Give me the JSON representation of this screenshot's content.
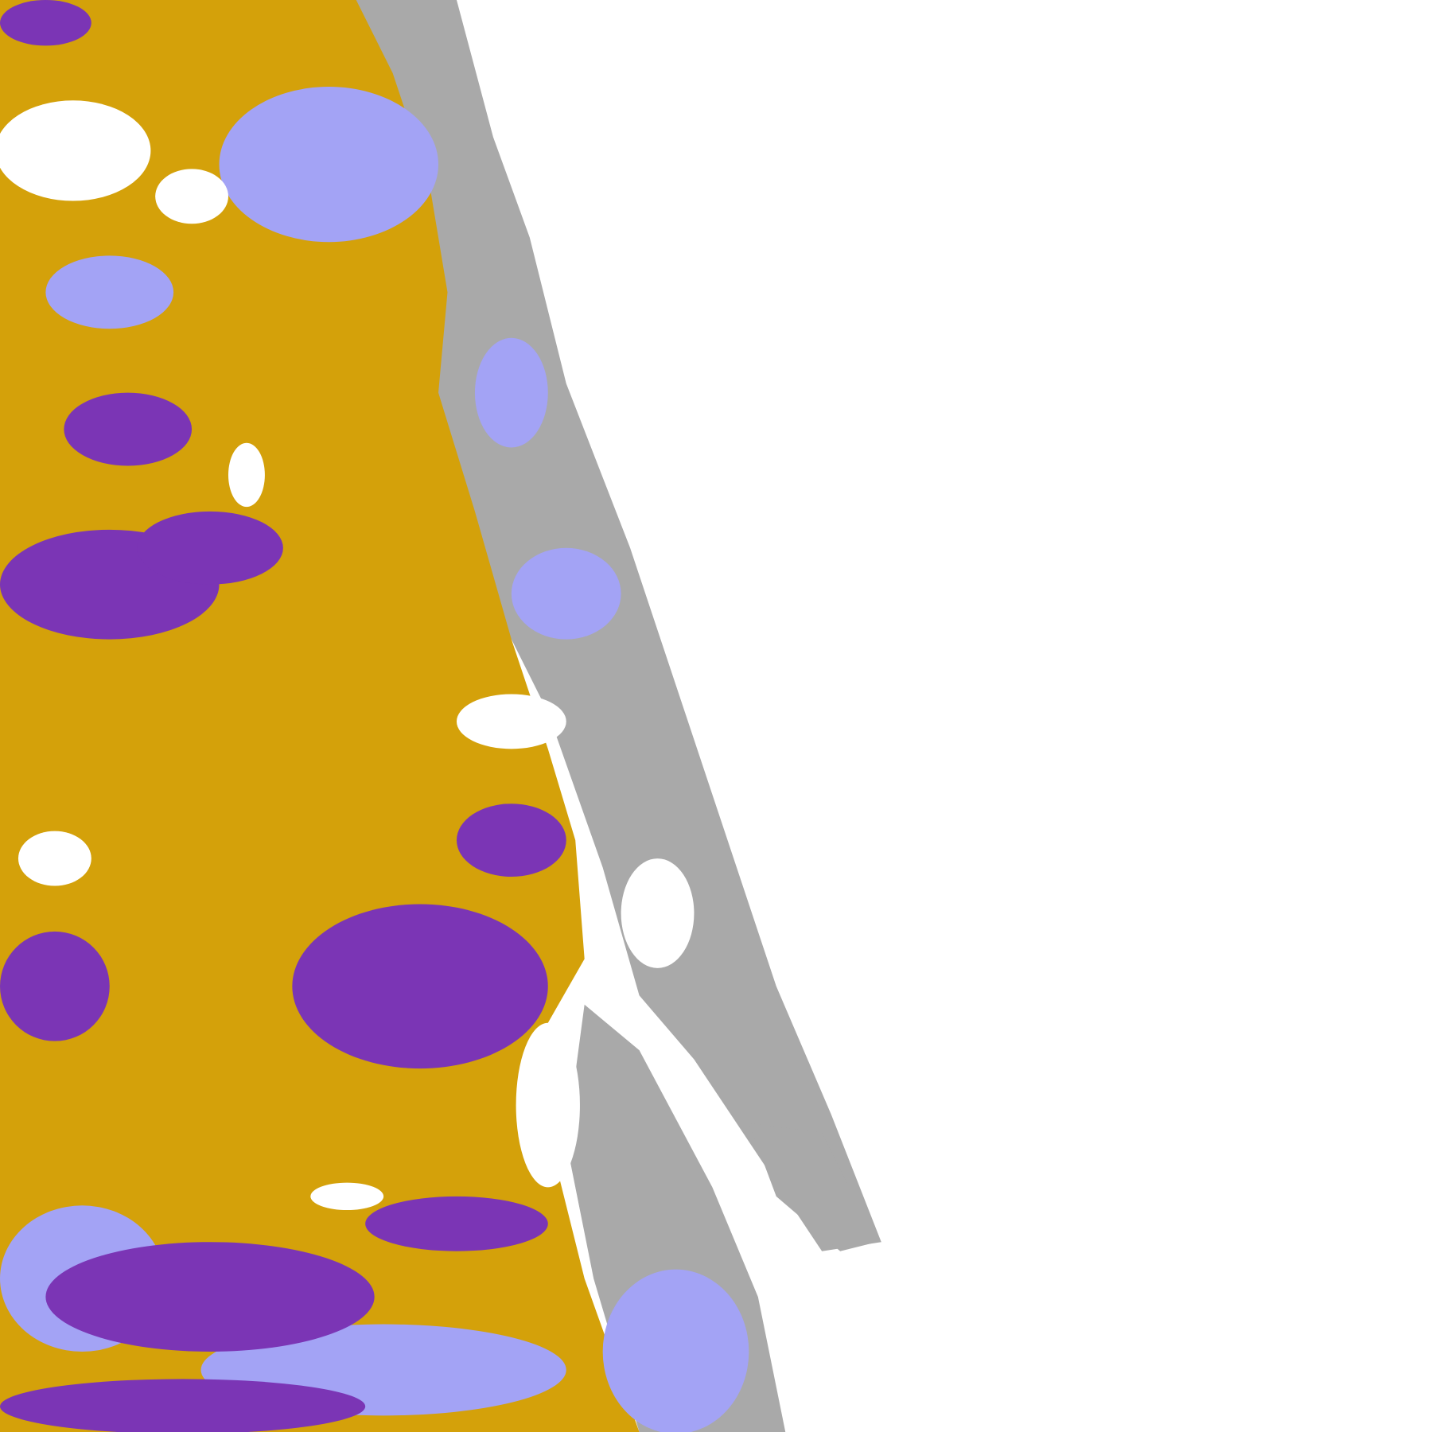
{
  "map": {
    "palette": {
      "background": "#ffffff",
      "gold": "#d4a10a",
      "purple": "#7b35b5",
      "lavender": "#a3a3f5",
      "gray": "#a9a9a9"
    }
  }
}
